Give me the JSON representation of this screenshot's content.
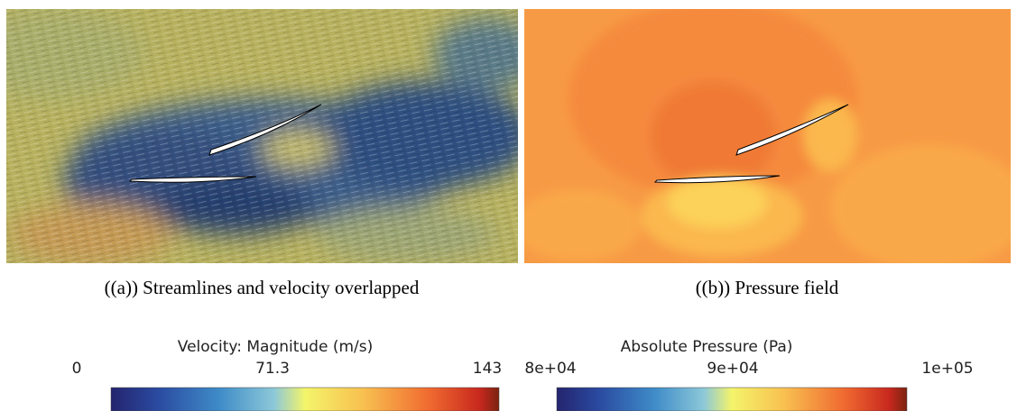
{
  "panels": [
    {
      "caption": "((a)) Streamlines and velocity overlapped",
      "colorbar": {
        "title": "Velocity: Magnitude (m/s)",
        "ticks": [
          "0",
          "71.3",
          "143"
        ]
      }
    },
    {
      "caption": "((b)) Pressure field",
      "colorbar": {
        "title": "Absolute Pressure (Pa)",
        "ticks": [
          "8e+04",
          "9e+04",
          "1e+05"
        ]
      }
    }
  ]
}
